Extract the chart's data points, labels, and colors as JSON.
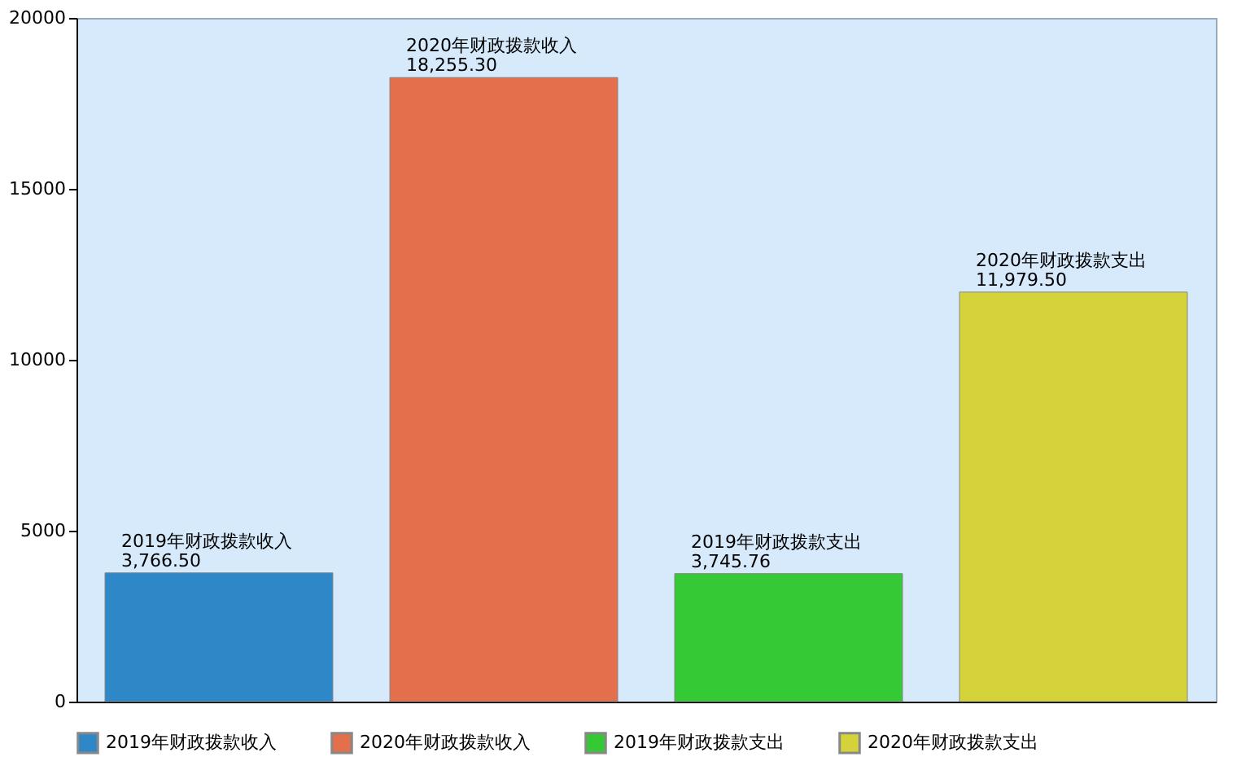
{
  "chart_data": {
    "type": "bar",
    "categories": [
      null,
      null,
      null,
      null
    ],
    "series": [
      {
        "name": "2019年财政拨款收入",
        "color": "#2e88c8",
        "values": [
          3766.5,
          null,
          null,
          null
        ],
        "value_labels": [
          "3,766.50",
          null,
          null,
          null
        ]
      },
      {
        "name": "2020年财政拨款收入",
        "color": "#e46f4c",
        "values": [
          null,
          18255.3,
          null,
          null
        ],
        "value_labels": [
          null,
          "18,255.30",
          null,
          null
        ]
      },
      {
        "name": "2019年财政拨款支出",
        "color": "#35c935",
        "values": [
          null,
          null,
          3745.76,
          null
        ],
        "value_labels": [
          null,
          null,
          "3,745.76",
          null
        ]
      },
      {
        "name": "2020年财政拨款支出",
        "color": "#d4d43a",
        "values": [
          null,
          null,
          null,
          11979.5
        ],
        "value_labels": [
          null,
          null,
          null,
          "11,979.50"
        ]
      }
    ],
    "ylim": [
      0,
      20000
    ],
    "yticks": [
      0,
      5000,
      10000,
      15000,
      20000
    ],
    "grid": false,
    "legend": "bottom",
    "tick_labels": "y"
  }
}
